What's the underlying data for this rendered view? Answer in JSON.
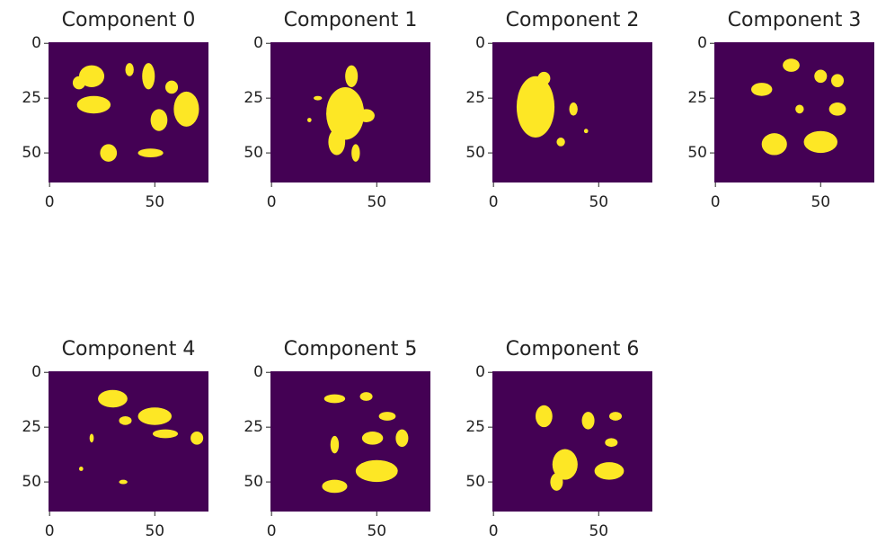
{
  "chart_data": [
    {
      "type": "image",
      "title": "Component 0",
      "xlim": [
        -0.5,
        75.5
      ],
      "ylim": [
        63.5,
        -0.5
      ],
      "xticks": [
        0,
        50
      ],
      "yticks": [
        0,
        25,
        50
      ],
      "background": "#440154",
      "color": "#fde725"
    },
    {
      "type": "image",
      "title": "Component 1",
      "xlim": [
        -0.5,
        75.5
      ],
      "ylim": [
        63.5,
        -0.5
      ],
      "xticks": [
        0,
        50
      ],
      "yticks": [
        0,
        25,
        50
      ],
      "background": "#440154",
      "color": "#fde725"
    },
    {
      "type": "image",
      "title": "Component 2",
      "xlim": [
        -0.5,
        75.5
      ],
      "ylim": [
        63.5,
        -0.5
      ],
      "xticks": [
        0,
        50
      ],
      "yticks": [
        0,
        25,
        50
      ],
      "background": "#440154",
      "color": "#fde725"
    },
    {
      "type": "image",
      "title": "Component 3",
      "xlim": [
        -0.5,
        75.5
      ],
      "ylim": [
        63.5,
        -0.5
      ],
      "xticks": [
        0,
        50
      ],
      "yticks": [
        0,
        25,
        50
      ],
      "background": "#440154",
      "color": "#fde725"
    },
    {
      "type": "image",
      "title": "Component 4",
      "xlim": [
        -0.5,
        75.5
      ],
      "ylim": [
        63.5,
        -0.5
      ],
      "xticks": [
        0,
        50
      ],
      "yticks": [
        0,
        25,
        50
      ],
      "background": "#440154",
      "color": "#fde725"
    },
    {
      "type": "image",
      "title": "Component 5",
      "xlim": [
        -0.5,
        75.5
      ],
      "ylim": [
        63.5,
        -0.5
      ],
      "xticks": [
        0,
        50
      ],
      "yticks": [
        0,
        25,
        50
      ],
      "background": "#440154",
      "color": "#fde725"
    },
    {
      "type": "image",
      "title": "Component 6",
      "xlim": [
        -0.5,
        75.5
      ],
      "ylim": [
        63.5,
        -0.5
      ],
      "xticks": [
        0,
        50
      ],
      "yticks": [
        0,
        25,
        50
      ],
      "background": "#440154",
      "color": "#fde725"
    }
  ]
}
